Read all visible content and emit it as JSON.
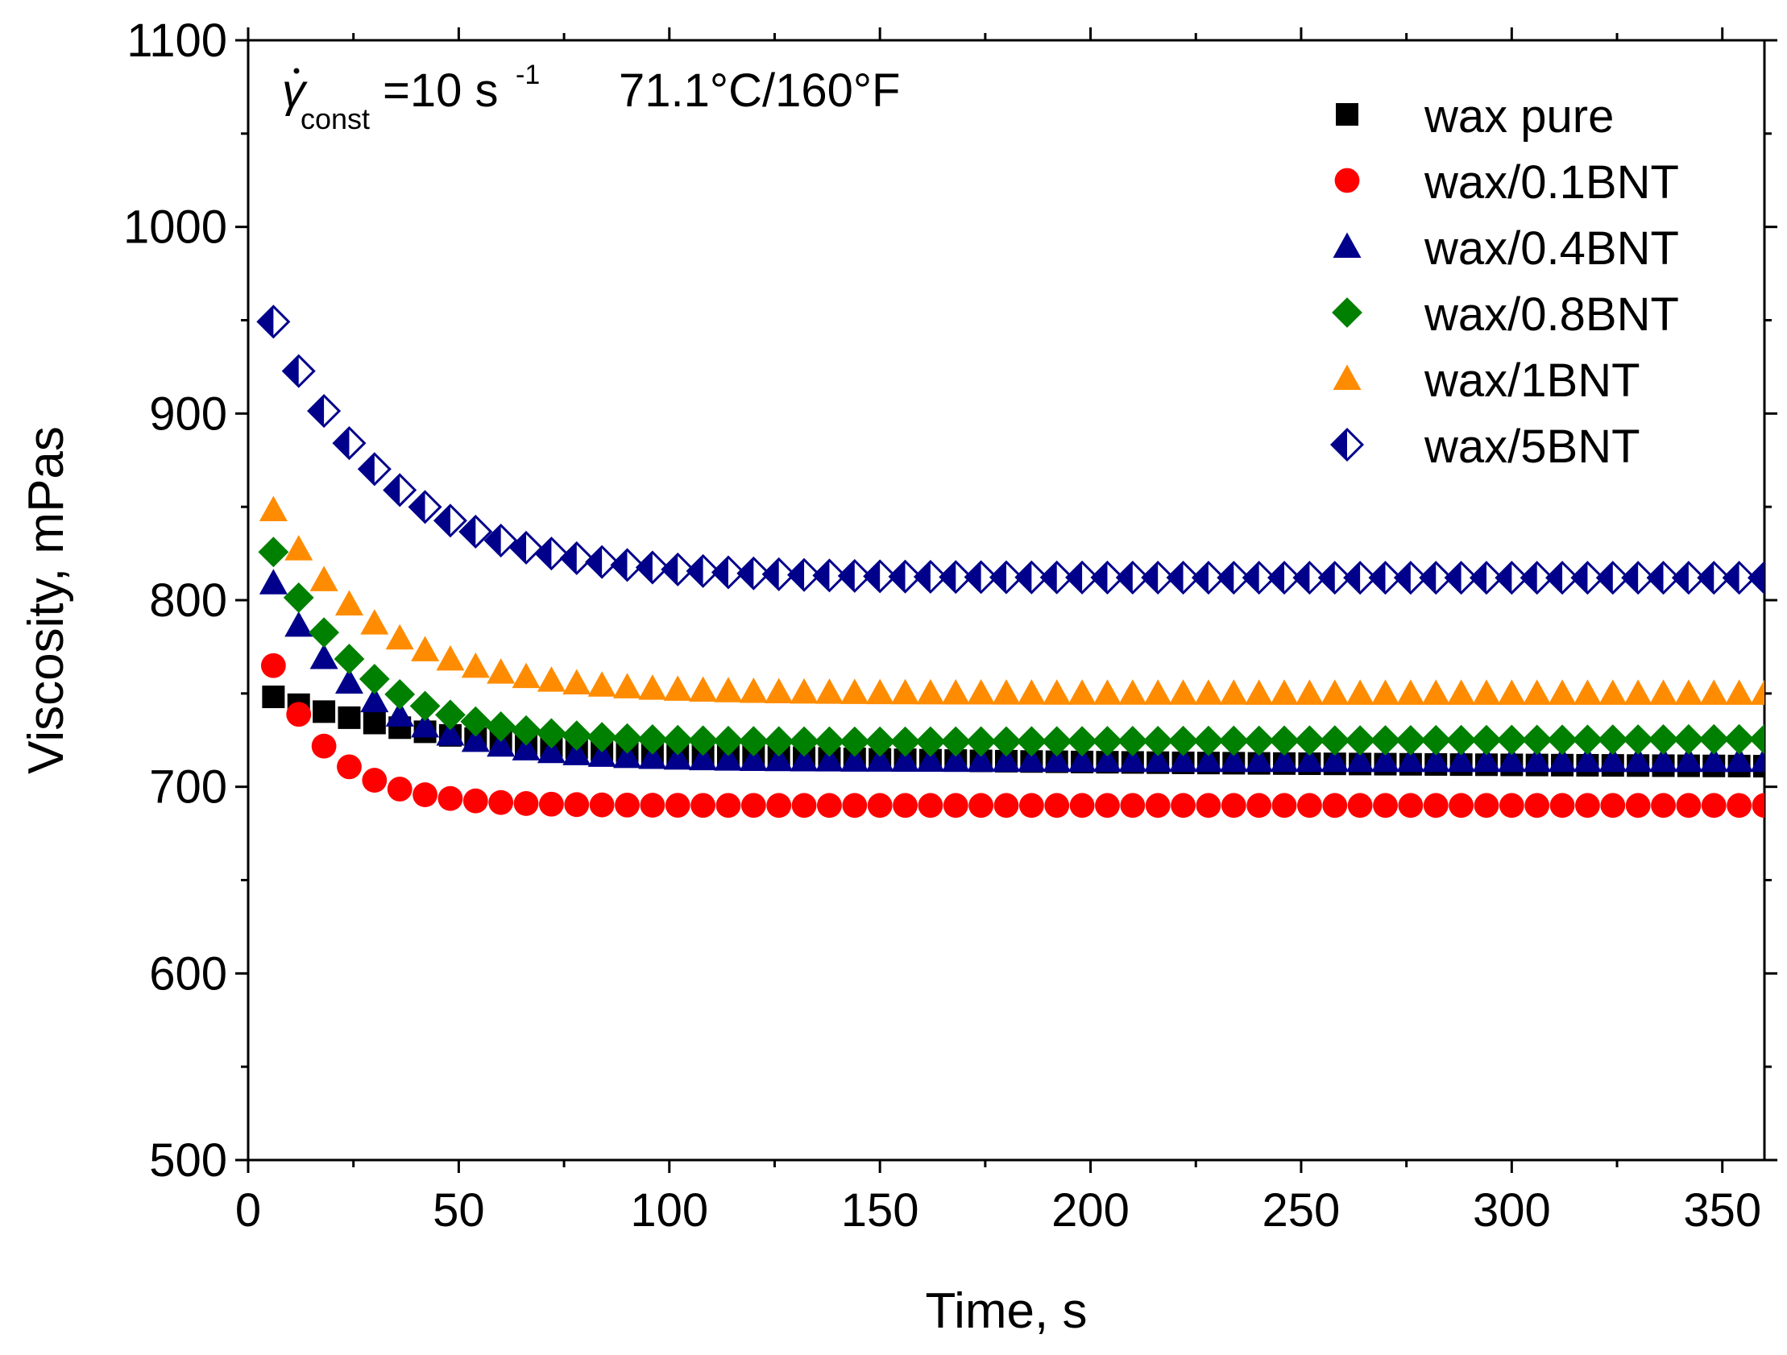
{
  "chart_data": {
    "type": "scatter",
    "title": "",
    "annotation": {
      "symbol": "γ",
      "subscript": "const",
      "rate_text": "=10 s",
      "rate_exp": "-1",
      "temperature": "71.1°C/160°F"
    },
    "xlabel": "Time, s",
    "ylabel": "Viscosity, mPas",
    "xlim": [
      0,
      360
    ],
    "ylim": [
      500,
      1100
    ],
    "xticks": [
      0,
      50,
      100,
      150,
      200,
      250,
      300,
      350
    ],
    "yticks": [
      500,
      600,
      700,
      800,
      900,
      1000,
      1100
    ],
    "xtick_labels": [
      "0",
      "50",
      "100",
      "150",
      "200",
      "250",
      "300",
      "350"
    ],
    "ytick_labels": [
      "500",
      "600",
      "700",
      "800",
      "900",
      "1000",
      "1100"
    ],
    "x_minor_step": 25,
    "y_minor_step": 50,
    "legend_position": "top-right",
    "x": {
      "start": 6,
      "step": 6,
      "count": 60
    },
    "series": [
      {
        "name": "wax pure",
        "marker": "square",
        "color": "#000000",
        "curve": {
          "plateau": 715,
          "drift": -0.011,
          "amplitude": 38,
          "tau": 45
        }
      },
      {
        "name": "wax/0.1BNT",
        "marker": "circle",
        "color": "#ff0000",
        "curve": {
          "plateau": 690,
          "drift": 0,
          "amplitude": 115,
          "tau": 14
        }
      },
      {
        "name": "wax/0.4BNT",
        "marker": "triangle",
        "color": "#00008b",
        "curve": {
          "plateau": 714,
          "drift": 0,
          "amplitude": 125,
          "tau": 22
        }
      },
      {
        "name": "wax/0.8BNT",
        "marker": "diamond",
        "color": "#008000",
        "curve": {
          "plateau": 723,
          "drift": 0.007,
          "amplitude": 135,
          "tau": 22
        }
      },
      {
        "name": "wax/1BNT",
        "marker": "triangle",
        "color": "#ff8c00",
        "curve": {
          "plateau": 750,
          "drift": 0,
          "amplitude": 125,
          "tau": 25
        }
      },
      {
        "name": "wax/5BNT",
        "marker": "half-diamond",
        "color": "#00008b",
        "curve": {
          "plateau": 812,
          "drift": 0,
          "amplitude": 170,
          "tau": 28
        }
      }
    ]
  }
}
